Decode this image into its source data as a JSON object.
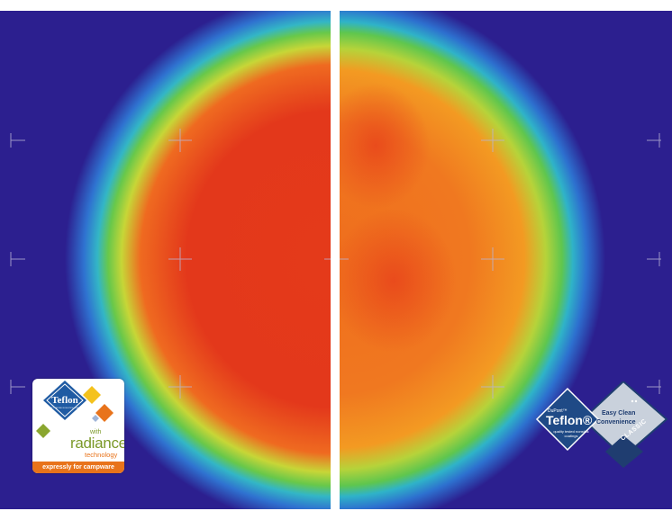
{
  "image": {
    "subject": "thermal images of two pans side by side",
    "colors": {
      "background": "#2c1f8f",
      "hot": "#e63317",
      "warm": "#f08a1e",
      "mid": "#9cd33a",
      "cool": "#27b5c8",
      "divider": "#ffffff"
    }
  },
  "badge_left": {
    "brand": "Teflon",
    "small_text": "QUALITY TESTED NON-STICK COATINGS",
    "with": "with",
    "product": "radiance",
    "technology": "technology",
    "tagline": "expressly for campware",
    "colors": {
      "blue": "#1f5ba3",
      "orange": "#e8731b",
      "green": "#7c9a2a",
      "yellow": "#f4c21d"
    }
  },
  "badge_right": {
    "dupont": "DuPont™",
    "brand": "Teflon®",
    "quality": "quality tested nonstick coatings",
    "line1": "Easy Clean",
    "line2": "Convenience",
    "tier": "CLASSIC",
    "colors": {
      "navy": "#1f3d70",
      "silver": "#c9d1dc"
    }
  }
}
